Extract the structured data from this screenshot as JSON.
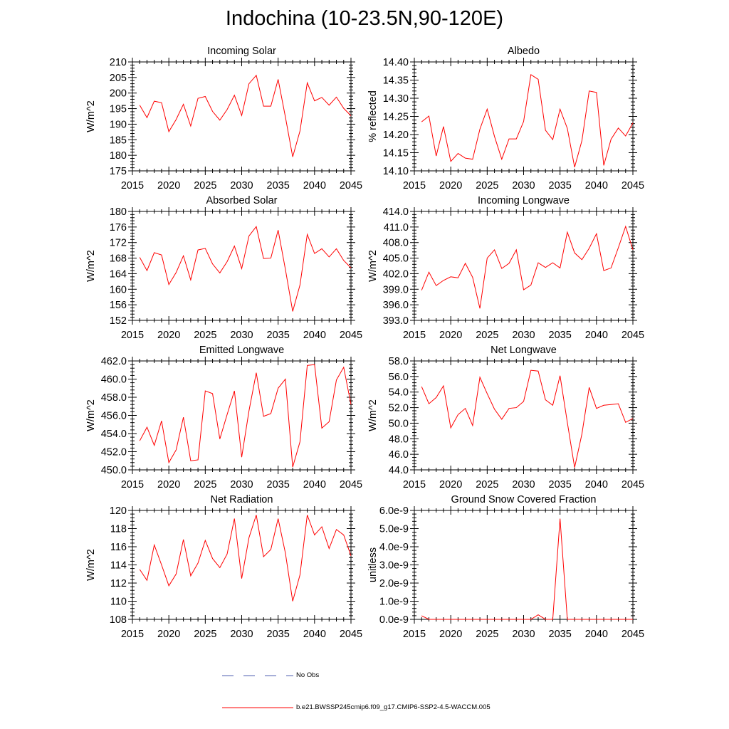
{
  "title": "Indochina (10-23.5N,90-120E)",
  "colors": {
    "series": "#ff0000",
    "noobs": "#4f5fb0",
    "axis": "#000000"
  },
  "legend": {
    "noobs_label": "No Obs",
    "series_label": "b.e21.BWSSP245cmip6.f09_g17.CMIP6-SSP2-4.5-WACCM.005"
  },
  "chart_data": [
    {
      "type": "line",
      "title": "Incoming Solar",
      "ylabel": "W/m^2",
      "xlabel": "",
      "xlim": [
        2015,
        2045
      ],
      "xticks": [
        2015,
        2020,
        2025,
        2030,
        2035,
        2040,
        2045
      ],
      "xtick_labels": [
        "2015",
        "2020",
        "2025",
        "2030",
        "2035",
        "2040",
        "2045"
      ],
      "ylim": [
        175,
        210
      ],
      "yticks": [
        175,
        180,
        185,
        190,
        195,
        200,
        205,
        210
      ],
      "ytick_labels": [
        "175",
        "180",
        "185",
        "190",
        "195",
        "200",
        "205",
        "210"
      ],
      "x": [
        2016,
        2017,
        2018,
        2019,
        2020,
        2021,
        2022,
        2023,
        2024,
        2025,
        2026,
        2027,
        2028,
        2029,
        2030,
        2031,
        2032,
        2033,
        2034,
        2035,
        2036,
        2037,
        2038,
        2039,
        2040,
        2041,
        2042,
        2043,
        2044,
        2045
      ],
      "series": [
        {
          "name": "b.e21.BWSSP245cmip6.f09_g17.CMIP6-SSP2-4.5-WACCM.005",
          "values": [
            196.1,
            192.1,
            197.4,
            196.9,
            187.6,
            191.5,
            196.4,
            189.4,
            198.3,
            198.9,
            194.1,
            191.3,
            194.7,
            199.3,
            192.8,
            203.0,
            205.7,
            195.8,
            195.8,
            204.4,
            192.3,
            179.5,
            187.8,
            203.3,
            197.5,
            198.6,
            196.1,
            198.7,
            195.1,
            192.7
          ]
        }
      ]
    },
    {
      "type": "line",
      "title": "Albedo",
      "ylabel": "% reflected",
      "xlabel": "",
      "xlim": [
        2015,
        2045
      ],
      "xticks": [
        2015,
        2020,
        2025,
        2030,
        2035,
        2040,
        2045
      ],
      "xtick_labels": [
        "2015",
        "2020",
        "2025",
        "2030",
        "2035",
        "2040",
        "2045"
      ],
      "ylim": [
        14.1,
        14.4
      ],
      "yticks": [
        14.1,
        14.15,
        14.2,
        14.25,
        14.3,
        14.35,
        14.4
      ],
      "ytick_labels": [
        "14.10",
        "14.15",
        "14.20",
        "14.25",
        "14.30",
        "14.35",
        "14.40"
      ],
      "x": [
        2016,
        2017,
        2018,
        2019,
        2020,
        2021,
        2022,
        2023,
        2024,
        2025,
        2026,
        2027,
        2028,
        2029,
        2030,
        2031,
        2032,
        2033,
        2034,
        2035,
        2036,
        2037,
        2038,
        2039,
        2040,
        2041,
        2042,
        2043,
        2044,
        2045
      ],
      "series": [
        {
          "name": "b.e21.BWSSP245cmip6.f09_g17.CMIP6-SSP2-4.5-WACCM.005",
          "values": [
            14.235,
            14.251,
            14.141,
            14.222,
            14.126,
            14.148,
            14.135,
            14.132,
            14.215,
            14.27,
            14.195,
            14.132,
            14.188,
            14.188,
            14.236,
            14.365,
            14.352,
            14.212,
            14.186,
            14.27,
            14.217,
            14.11,
            14.183,
            14.32,
            14.316,
            14.115,
            14.187,
            14.218,
            14.196,
            14.232
          ]
        }
      ]
    },
    {
      "type": "line",
      "title": "Absorbed Solar",
      "ylabel": "W/m^2",
      "xlabel": "",
      "xlim": [
        2015,
        2045
      ],
      "xticks": [
        2015,
        2020,
        2025,
        2030,
        2035,
        2040,
        2045
      ],
      "xtick_labels": [
        "2015",
        "2020",
        "2025",
        "2030",
        "2035",
        "2040",
        "2045"
      ],
      "ylim": [
        152,
        180
      ],
      "yticks": [
        152,
        156,
        160,
        164,
        168,
        172,
        176,
        180
      ],
      "ytick_labels": [
        "152",
        "156",
        "160",
        "164",
        "168",
        "172",
        "176",
        "180"
      ],
      "x": [
        2016,
        2017,
        2018,
        2019,
        2020,
        2021,
        2022,
        2023,
        2024,
        2025,
        2026,
        2027,
        2028,
        2029,
        2030,
        2031,
        2032,
        2033,
        2034,
        2035,
        2036,
        2037,
        2038,
        2039,
        2040,
        2041,
        2042,
        2043,
        2044,
        2045
      ],
      "series": [
        {
          "name": "b.e21.BWSSP245cmip6.f09_g17.CMIP6-SSP2-4.5-WACCM.005",
          "values": [
            168.2,
            164.8,
            169.4,
            168.8,
            161.2,
            164.3,
            168.6,
            162.4,
            170.1,
            170.5,
            166.5,
            164.2,
            167.1,
            171.1,
            165.3,
            173.7,
            176.1,
            167.9,
            168.0,
            175.2,
            165.1,
            154.3,
            161.1,
            174.1,
            169.2,
            170.4,
            168.3,
            170.4,
            167.4,
            165.5
          ]
        }
      ]
    },
    {
      "type": "line",
      "title": "Incoming Longwave",
      "ylabel": "W/m^2",
      "xlabel": "",
      "xlim": [
        2015,
        2045
      ],
      "xticks": [
        2015,
        2020,
        2025,
        2030,
        2035,
        2040,
        2045
      ],
      "xtick_labels": [
        "2015",
        "2020",
        "2025",
        "2030",
        "2035",
        "2040",
        "2045"
      ],
      "ylim": [
        393.0,
        414.0
      ],
      "yticks": [
        393.0,
        396.0,
        399.0,
        402.0,
        405.0,
        408.0,
        411.0,
        414.0
      ],
      "ytick_labels": [
        "393.0",
        "396.0",
        "399.0",
        "402.0",
        "405.0",
        "408.0",
        "411.0",
        "414.0"
      ],
      "x": [
        2016,
        2017,
        2018,
        2019,
        2020,
        2021,
        2022,
        2023,
        2024,
        2025,
        2026,
        2027,
        2028,
        2029,
        2030,
        2031,
        2032,
        2033,
        2034,
        2035,
        2036,
        2037,
        2038,
        2039,
        2040,
        2041,
        2042,
        2043,
        2044,
        2045
      ],
      "series": [
        {
          "name": "b.e21.BWSSP245cmip6.f09_g17.CMIP6-SSP2-4.5-WACCM.005",
          "values": [
            398.8,
            402.3,
            399.7,
            400.7,
            401.4,
            401.2,
            404.0,
            401.3,
            395.3,
            405.0,
            406.6,
            403.0,
            404.0,
            406.6,
            398.9,
            399.8,
            404.1,
            403.2,
            404.1,
            403.1,
            410.0,
            406.0,
            404.7,
            406.9,
            409.7,
            402.6,
            403.1,
            407.0,
            411.1,
            406.6
          ]
        }
      ]
    },
    {
      "type": "line",
      "title": "Emitted Longwave",
      "ylabel": "W/m^2",
      "xlabel": "",
      "xlim": [
        2015,
        2045
      ],
      "xticks": [
        2015,
        2020,
        2025,
        2030,
        2035,
        2040,
        2045
      ],
      "xtick_labels": [
        "2015",
        "2020",
        "2025",
        "2030",
        "2035",
        "2040",
        "2045"
      ],
      "ylim": [
        450.0,
        462.0
      ],
      "yticks": [
        450.0,
        452.0,
        454.0,
        456.0,
        458.0,
        460.0,
        462.0
      ],
      "ytick_labels": [
        "450.0",
        "452.0",
        "454.0",
        "456.0",
        "458.0",
        "460.0",
        "462.0"
      ],
      "x": [
        2016,
        2017,
        2018,
        2019,
        2020,
        2021,
        2022,
        2023,
        2024,
        2025,
        2026,
        2027,
        2028,
        2029,
        2030,
        2031,
        2032,
        2033,
        2034,
        2035,
        2036,
        2037,
        2038,
        2039,
        2040,
        2041,
        2042,
        2043,
        2044,
        2045
      ],
      "series": [
        {
          "name": "b.e21.BWSSP245cmip6.f09_g17.CMIP6-SSP2-4.5-WACCM.005",
          "values": [
            453.2,
            454.7,
            452.7,
            455.4,
            450.8,
            452.2,
            455.8,
            451.0,
            451.1,
            458.7,
            458.4,
            453.4,
            456.1,
            458.7,
            451.4,
            456.5,
            460.7,
            455.9,
            456.2,
            459.0,
            460.0,
            450.3,
            453.1,
            461.5,
            461.6,
            454.6,
            455.3,
            459.9,
            461.3,
            457.2
          ]
        }
      ]
    },
    {
      "type": "line",
      "title": "Net Longwave",
      "ylabel": "W/m^2",
      "xlabel": "",
      "xlim": [
        2015,
        2045
      ],
      "xticks": [
        2015,
        2020,
        2025,
        2030,
        2035,
        2040,
        2045
      ],
      "xtick_labels": [
        "2015",
        "2020",
        "2025",
        "2030",
        "2035",
        "2040",
        "2045"
      ],
      "ylim": [
        44.0,
        58.0
      ],
      "yticks": [
        44.0,
        46.0,
        48.0,
        50.0,
        52.0,
        54.0,
        56.0,
        58.0
      ],
      "ytick_labels": [
        "44.0",
        "46.0",
        "48.0",
        "50.0",
        "52.0",
        "54.0",
        "56.0",
        "58.0"
      ],
      "x": [
        2016,
        2017,
        2018,
        2019,
        2020,
        2021,
        2022,
        2023,
        2024,
        2025,
        2026,
        2027,
        2028,
        2029,
        2030,
        2031,
        2032,
        2033,
        2034,
        2035,
        2036,
        2037,
        2038,
        2039,
        2040,
        2041,
        2042,
        2043,
        2044,
        2045
      ],
      "series": [
        {
          "name": "b.e21.BWSSP245cmip6.f09_g17.CMIP6-SSP2-4.5-WACCM.005",
          "values": [
            54.7,
            52.5,
            53.3,
            54.8,
            49.4,
            51.1,
            51.9,
            49.7,
            55.9,
            53.8,
            51.8,
            50.5,
            51.9,
            52.0,
            52.8,
            56.8,
            56.7,
            53.0,
            52.3,
            56.1,
            50.1,
            44.3,
            48.6,
            54.6,
            51.9,
            52.3,
            52.4,
            52.5,
            50.1,
            50.6
          ]
        }
      ]
    },
    {
      "type": "line",
      "title": "Net Radiation",
      "ylabel": "W/m^2",
      "xlabel": "",
      "xlim": [
        2015,
        2045
      ],
      "xticks": [
        2015,
        2020,
        2025,
        2030,
        2035,
        2040,
        2045
      ],
      "xtick_labels": [
        "2015",
        "2020",
        "2025",
        "2030",
        "2035",
        "2040",
        "2045"
      ],
      "ylim": [
        108,
        120
      ],
      "yticks": [
        108,
        110,
        112,
        114,
        116,
        118,
        120
      ],
      "ytick_labels": [
        "108",
        "110",
        "112",
        "114",
        "116",
        "118",
        "120"
      ],
      "x": [
        2016,
        2017,
        2018,
        2019,
        2020,
        2021,
        2022,
        2023,
        2024,
        2025,
        2026,
        2027,
        2028,
        2029,
        2030,
        2031,
        2032,
        2033,
        2034,
        2035,
        2036,
        2037,
        2038,
        2039,
        2040,
        2041,
        2042,
        2043,
        2044,
        2045
      ],
      "series": [
        {
          "name": "b.e21.BWSSP245cmip6.f09_g17.CMIP6-SSP2-4.5-WACCM.005",
          "values": [
            113.5,
            112.3,
            116.2,
            114.0,
            111.7,
            113.0,
            116.8,
            112.8,
            114.2,
            116.7,
            114.7,
            113.7,
            115.2,
            119.1,
            112.5,
            117.0,
            119.5,
            114.9,
            115.7,
            119.1,
            115.3,
            110.0,
            112.9,
            119.5,
            117.3,
            118.2,
            115.8,
            117.9,
            117.3,
            115.0
          ]
        }
      ]
    },
    {
      "type": "line",
      "title": "Ground Snow Covered Fraction",
      "ylabel": "unitless",
      "xlabel": "",
      "xlim": [
        2015,
        2045
      ],
      "xticks": [
        2015,
        2020,
        2025,
        2030,
        2035,
        2040,
        2045
      ],
      "xtick_labels": [
        "2015",
        "2020",
        "2025",
        "2030",
        "2035",
        "2040",
        "2045"
      ],
      "ylim": [
        0,
        6e-09
      ],
      "yticks": [
        0,
        1e-09,
        2e-09,
        3e-09,
        4e-09,
        5e-09,
        6e-09
      ],
      "ytick_labels": [
        "0.0e-9",
        "1.0e-9",
        "2.0e-9",
        "3.0e-9",
        "4.0e-9",
        "5.0e-9",
        "6.0e-9"
      ],
      "x": [
        2016,
        2017,
        2018,
        2019,
        2020,
        2021,
        2022,
        2023,
        2024,
        2025,
        2026,
        2027,
        2028,
        2029,
        2030,
        2031,
        2032,
        2033,
        2034,
        2035,
        2036,
        2037,
        2038,
        2039,
        2040,
        2041,
        2042,
        2043,
        2044,
        2045
      ],
      "series": [
        {
          "name": "b.e21.BWSSP245cmip6.f09_g17.CMIP6-SSP2-4.5-WACCM.005",
          "values": [
            2e-10,
            0,
            0,
            0,
            0,
            0,
            0,
            0,
            0,
            0,
            0,
            0,
            0,
            0,
            0,
            0,
            2.5e-10,
            0,
            0,
            5.55e-09,
            0,
            0,
            0,
            0,
            0,
            0,
            0,
            0,
            0,
            0
          ]
        }
      ]
    }
  ]
}
